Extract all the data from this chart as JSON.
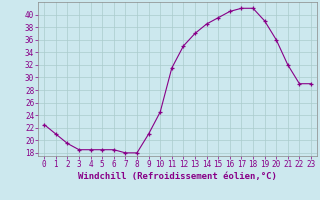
{
  "x": [
    0,
    1,
    2,
    3,
    4,
    5,
    6,
    7,
    8,
    9,
    10,
    11,
    12,
    13,
    14,
    15,
    16,
    17,
    18,
    19,
    20,
    21,
    22,
    23
  ],
  "y": [
    22.5,
    21.0,
    19.5,
    18.5,
    18.5,
    18.5,
    18.5,
    18.0,
    18.0,
    21.0,
    24.5,
    31.5,
    35.0,
    37.0,
    38.5,
    39.5,
    40.5,
    41.0,
    41.0,
    39.0,
    36.0,
    32.0,
    29.0,
    29.0
  ],
  "xlabel": "Windchill (Refroidissement éolien,°C)",
  "ylim": [
    17.5,
    42
  ],
  "xlim": [
    -0.5,
    23.5
  ],
  "yticks": [
    18,
    20,
    22,
    24,
    26,
    28,
    30,
    32,
    34,
    36,
    38,
    40
  ],
  "xticks": [
    0,
    1,
    2,
    3,
    4,
    5,
    6,
    7,
    8,
    9,
    10,
    11,
    12,
    13,
    14,
    15,
    16,
    17,
    18,
    19,
    20,
    21,
    22,
    23
  ],
  "line_color": "#880088",
  "marker": "+",
  "bg_color": "#cce8ee",
  "grid_color": "#aacccc",
  "label_fontsize": 6.5,
  "tick_fontsize": 5.5
}
